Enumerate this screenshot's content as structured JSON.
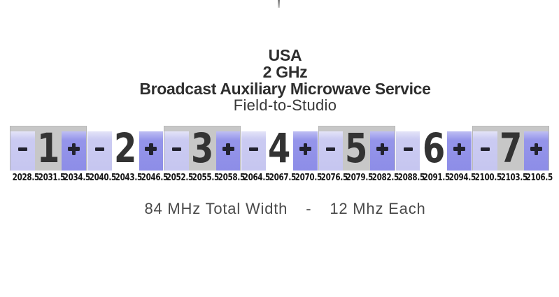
{
  "title": {
    "country": "USA",
    "band": "2 GHz",
    "service": "Broadcast Auxiliary Microwave Service",
    "mode": "Field-to-Studio"
  },
  "band_plan": {
    "minus_sign": "-",
    "plus_sign": "+",
    "channels": [
      {
        "number": "1",
        "minus_freq": "2028.5",
        "center_freq": "2031.5",
        "plus_freq": "2034.5",
        "background": "gray"
      },
      {
        "number": "2",
        "minus_freq": "2040.5",
        "center_freq": "2043.5",
        "plus_freq": "2046.5",
        "background": "white"
      },
      {
        "number": "3",
        "minus_freq": "2052.5",
        "center_freq": "2055.5",
        "plus_freq": "2058.5",
        "background": "gray"
      },
      {
        "number": "4",
        "minus_freq": "2064.5",
        "center_freq": "2067.5",
        "plus_freq": "2070.5",
        "background": "white"
      },
      {
        "number": "5",
        "minus_freq": "2076.5",
        "center_freq": "2079.5",
        "plus_freq": "2082.5",
        "background": "gray"
      },
      {
        "number": "6",
        "minus_freq": "2088.5",
        "center_freq": "2091.5",
        "plus_freq": "2094.5",
        "background": "white"
      },
      {
        "number": "7",
        "minus_freq": "2100.5",
        "center_freq": "2103.5",
        "plus_freq": "2106.5",
        "background": "gray"
      }
    ]
  },
  "footer": {
    "total_width": "84 MHz Total Width",
    "separator": "-",
    "per_channel": "12 Mhz Each"
  },
  "colors": {
    "minus_block": "#c6c6f0",
    "plus_block": "#8d8de7",
    "band_gray": "#c7c7c7",
    "band_white": "#ffffff",
    "sign": "#22222f",
    "channel_number": "#333333",
    "frequency_label": "#161616",
    "title_text": "#2e2e2e",
    "footer_text": "#4a4a4a",
    "top_tick": "#7d7d7d"
  },
  "chart_data": {
    "type": "table",
    "title": "USA 2 GHz Broadcast Auxiliary Microwave Service - Field-to-Studio",
    "columns": [
      "channel",
      "minus_subchannel_mhz",
      "center_mhz",
      "plus_subchannel_mhz"
    ],
    "rows": [
      [
        1,
        2028.5,
        2031.5,
        2034.5
      ],
      [
        2,
        2040.5,
        2043.5,
        2046.5
      ],
      [
        3,
        2052.5,
        2055.5,
        2058.5
      ],
      [
        4,
        2064.5,
        2067.5,
        2070.5
      ],
      [
        5,
        2076.5,
        2079.5,
        2082.5
      ],
      [
        6,
        2088.5,
        2091.5,
        2094.5
      ],
      [
        7,
        2100.5,
        2103.5,
        2106.5
      ]
    ],
    "total_width_mhz": 84,
    "channel_width_mhz": 12
  }
}
